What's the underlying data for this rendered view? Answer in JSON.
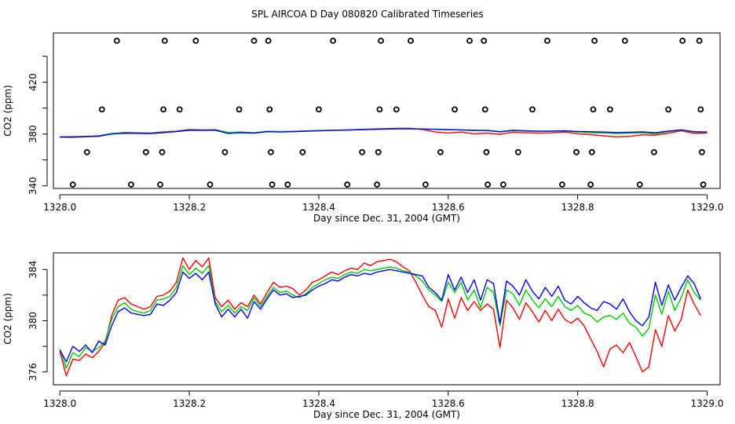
{
  "page_title": "SPL AIRCOA D  Day 080820  Calibrated Timeseries",
  "colors": {
    "red": "#ff0000",
    "green": "#00cc00",
    "blue": "#0000ff",
    "axis": "#000000"
  },
  "chart_data": [
    {
      "type": "line",
      "id": "top",
      "xlabel": "Day since Dec. 31, 2004 (GMT)",
      "ylabel": "CO2 (ppm)",
      "xlim": [
        1327.99,
        1329.02
      ],
      "ylim": [
        338,
        458
      ],
      "xticks": [
        1328.0,
        1328.2,
        1328.4,
        1328.6,
        1328.8,
        1329.0
      ],
      "xtick_labels": [
        "1328.0",
        "1328.2",
        "1328.4",
        "1328.6",
        "1328.8",
        "1329.0"
      ],
      "yticks": [
        340,
        380,
        420
      ],
      "ytick_labels": [
        "340",
        "380",
        "420"
      ],
      "yticks_minor": [
        360,
        400,
        440
      ],
      "x": [
        1328.0,
        1328.02,
        1328.04,
        1328.06,
        1328.08,
        1328.1,
        1328.12,
        1328.14,
        1328.16,
        1328.18,
        1328.2,
        1328.22,
        1328.24,
        1328.26,
        1328.28,
        1328.3,
        1328.32,
        1328.34,
        1328.36,
        1328.38,
        1328.4,
        1328.42,
        1328.44,
        1328.46,
        1328.48,
        1328.5,
        1328.52,
        1328.54,
        1328.56,
        1328.58,
        1328.6,
        1328.62,
        1328.64,
        1328.66,
        1328.68,
        1328.7,
        1328.72,
        1328.74,
        1328.76,
        1328.78,
        1328.8,
        1328.82,
        1328.84,
        1328.86,
        1328.88,
        1328.9,
        1328.92,
        1328.94,
        1328.96,
        1328.98,
        1329.0
      ],
      "series": [
        {
          "name": "red",
          "color": "#ff0000",
          "values": [
            377.6,
            377.4,
            377.8,
            378.2,
            380.2,
            381.3,
            381.0,
            380.8,
            381.7,
            382.2,
            383.6,
            383.2,
            383.4,
            381.0,
            381.3,
            380.8,
            382.1,
            381.8,
            382.0,
            382.3,
            382.6,
            382.9,
            383.1,
            383.5,
            383.9,
            384.2,
            384.4,
            384.5,
            383.5,
            381.6,
            380.8,
            381.6,
            380.2,
            380.7,
            379.8,
            381.4,
            381.0,
            380.6,
            380.9,
            381.5,
            380.2,
            379.5,
            378.6,
            377.8,
            378.2,
            379.4,
            379.1,
            380.6,
            382.5,
            380.5,
            380.8
          ]
        },
        {
          "name": "green",
          "color": "#00cc00",
          "values": [
            377.8,
            377.7,
            378.0,
            378.6,
            380.4,
            381.0,
            380.7,
            380.6,
            381.4,
            382.0,
            383.3,
            383.0,
            383.3,
            381.2,
            381.6,
            381.0,
            382.1,
            381.9,
            382.1,
            382.4,
            382.7,
            382.9,
            383.1,
            383.4,
            383.6,
            383.9,
            384.1,
            384.2,
            383.9,
            383.6,
            383.3,
            383.1,
            382.6,
            382.7,
            381.6,
            382.6,
            382.3,
            381.9,
            382.1,
            382.3,
            381.5,
            381.0,
            380.8,
            380.4,
            380.6,
            380.9,
            380.1,
            381.8,
            383.0,
            381.5,
            381.6
          ]
        },
        {
          "name": "blue",
          "color": "#0000ff",
          "values": [
            377.7,
            377.9,
            378.2,
            378.4,
            380.0,
            380.6,
            380.5,
            380.4,
            381.1,
            381.9,
            382.9,
            382.8,
            383.0,
            380.5,
            381.0,
            380.7,
            381.8,
            381.6,
            381.8,
            382.2,
            382.5,
            382.8,
            383.0,
            383.3,
            383.5,
            383.8,
            384.0,
            384.1,
            383.9,
            383.7,
            383.4,
            383.2,
            382.9,
            382.8,
            381.8,
            382.9,
            382.5,
            382.2,
            382.3,
            382.5,
            382.0,
            381.8,
            381.5,
            381.2,
            381.4,
            381.7,
            381.0,
            382.3,
            383.2,
            381.8,
            381.6
          ]
        }
      ],
      "markers": [
        {
          "x": 1328.02,
          "y": 341
        },
        {
          "x": 1328.042,
          "y": 366
        },
        {
          "x": 1328.065,
          "y": 399
        },
        {
          "x": 1328.088,
          "y": 452
        },
        {
          "x": 1328.11,
          "y": 341
        },
        {
          "x": 1328.133,
          "y": 366
        },
        {
          "x": 1328.155,
          "y": 341
        },
        {
          "x": 1328.158,
          "y": 366
        },
        {
          "x": 1328.16,
          "y": 399
        },
        {
          "x": 1328.162,
          "y": 452
        },
        {
          "x": 1328.185,
          "y": 399
        },
        {
          "x": 1328.21,
          "y": 452
        },
        {
          "x": 1328.232,
          "y": 341
        },
        {
          "x": 1328.255,
          "y": 366
        },
        {
          "x": 1328.277,
          "y": 399
        },
        {
          "x": 1328.3,
          "y": 452
        },
        {
          "x": 1328.322,
          "y": 452
        },
        {
          "x": 1328.324,
          "y": 399
        },
        {
          "x": 1328.326,
          "y": 366
        },
        {
          "x": 1328.328,
          "y": 341
        },
        {
          "x": 1328.352,
          "y": 341
        },
        {
          "x": 1328.375,
          "y": 366
        },
        {
          "x": 1328.4,
          "y": 399
        },
        {
          "x": 1328.422,
          "y": 452
        },
        {
          "x": 1328.444,
          "y": 341
        },
        {
          "x": 1328.467,
          "y": 366
        },
        {
          "x": 1328.49,
          "y": 341
        },
        {
          "x": 1328.492,
          "y": 366
        },
        {
          "x": 1328.494,
          "y": 399
        },
        {
          "x": 1328.496,
          "y": 452
        },
        {
          "x": 1328.52,
          "y": 399
        },
        {
          "x": 1328.542,
          "y": 452
        },
        {
          "x": 1328.565,
          "y": 341
        },
        {
          "x": 1328.588,
          "y": 366
        },
        {
          "x": 1328.61,
          "y": 399
        },
        {
          "x": 1328.633,
          "y": 452
        },
        {
          "x": 1328.655,
          "y": 452
        },
        {
          "x": 1328.657,
          "y": 399
        },
        {
          "x": 1328.659,
          "y": 366
        },
        {
          "x": 1328.661,
          "y": 341
        },
        {
          "x": 1328.685,
          "y": 341
        },
        {
          "x": 1328.708,
          "y": 366
        },
        {
          "x": 1328.73,
          "y": 399
        },
        {
          "x": 1328.753,
          "y": 452
        },
        {
          "x": 1328.776,
          "y": 341
        },
        {
          "x": 1328.798,
          "y": 366
        },
        {
          "x": 1328.82,
          "y": 341
        },
        {
          "x": 1328.822,
          "y": 366
        },
        {
          "x": 1328.824,
          "y": 399
        },
        {
          "x": 1328.826,
          "y": 452
        },
        {
          "x": 1328.85,
          "y": 399
        },
        {
          "x": 1328.873,
          "y": 452
        },
        {
          "x": 1328.896,
          "y": 341
        },
        {
          "x": 1328.918,
          "y": 366
        },
        {
          "x": 1328.94,
          "y": 399
        },
        {
          "x": 1328.962,
          "y": 452
        },
        {
          "x": 1328.988,
          "y": 452
        },
        {
          "x": 1328.99,
          "y": 399
        },
        {
          "x": 1328.992,
          "y": 366
        },
        {
          "x": 1328.994,
          "y": 341
        }
      ]
    },
    {
      "type": "line",
      "id": "bottom",
      "xlabel": "Day since Dec. 31, 2004 (GMT)",
      "ylabel": "CO2 (ppm)",
      "xlim": [
        1327.99,
        1329.02
      ],
      "ylim": [
        375,
        385.3
      ],
      "xticks": [
        1328.0,
        1328.2,
        1328.4,
        1328.6,
        1328.8,
        1329.0
      ],
      "xtick_labels": [
        "1328.0",
        "1328.2",
        "1328.4",
        "1328.6",
        "1328.8",
        "1329.0"
      ],
      "yticks": [
        376,
        380,
        384
      ],
      "ytick_labels": [
        "376",
        "380",
        "384"
      ],
      "yticks_minor": [
        378,
        382
      ],
      "x": [
        1328.0,
        1328.01,
        1328.02,
        1328.03,
        1328.04,
        1328.05,
        1328.06,
        1328.07,
        1328.08,
        1328.09,
        1328.1,
        1328.11,
        1328.12,
        1328.13,
        1328.14,
        1328.15,
        1328.16,
        1328.17,
        1328.18,
        1328.19,
        1328.2,
        1328.21,
        1328.22,
        1328.23,
        1328.24,
        1328.25,
        1328.26,
        1328.27,
        1328.28,
        1328.29,
        1328.3,
        1328.31,
        1328.32,
        1328.33,
        1328.34,
        1328.35,
        1328.36,
        1328.37,
        1328.38,
        1328.39,
        1328.4,
        1328.41,
        1328.42,
        1328.43,
        1328.44,
        1328.45,
        1328.46,
        1328.47,
        1328.48,
        1328.49,
        1328.5,
        1328.51,
        1328.52,
        1328.53,
        1328.54,
        1328.55,
        1328.56,
        1328.57,
        1328.58,
        1328.59,
        1328.6,
        1328.61,
        1328.62,
        1328.63,
        1328.64,
        1328.65,
        1328.66,
        1328.67,
        1328.68,
        1328.69,
        1328.7,
        1328.71,
        1328.72,
        1328.73,
        1328.74,
        1328.75,
        1328.76,
        1328.77,
        1328.78,
        1328.79,
        1328.8,
        1328.81,
        1328.82,
        1328.83,
        1328.84,
        1328.85,
        1328.86,
        1328.87,
        1328.88,
        1328.89,
        1328.9,
        1328.91,
        1328.92,
        1328.93,
        1328.94,
        1328.95,
        1328.96,
        1328.97,
        1328.98,
        1328.99
      ],
      "series": [
        {
          "name": "red",
          "color": "#ff0000",
          "values": [
            377.6,
            375.7,
            377.0,
            376.9,
            377.4,
            377.1,
            377.6,
            378.3,
            380.4,
            381.6,
            381.8,
            381.3,
            381.1,
            380.9,
            381.1,
            381.9,
            382.0,
            382.3,
            383.0,
            384.9,
            384.0,
            384.7,
            384.2,
            384.9,
            381.8,
            381.1,
            381.6,
            380.9,
            381.4,
            381.1,
            382.0,
            381.3,
            382.2,
            383.0,
            382.6,
            382.7,
            382.5,
            382.0,
            382.4,
            383.0,
            383.2,
            383.5,
            383.8,
            383.6,
            383.9,
            384.1,
            384.0,
            384.5,
            384.3,
            384.6,
            384.7,
            384.8,
            384.6,
            384.2,
            383.9,
            383.0,
            382.0,
            381.1,
            380.8,
            379.5,
            381.7,
            380.2,
            381.8,
            380.8,
            381.5,
            380.8,
            381.3,
            380.9,
            377.9,
            381.6,
            381.0,
            380.1,
            381.4,
            380.7,
            379.9,
            380.8,
            380.0,
            380.9,
            380.1,
            379.8,
            380.2,
            379.6,
            378.6,
            377.6,
            376.4,
            377.8,
            378.1,
            377.5,
            378.3,
            377.2,
            376.0,
            376.4,
            379.3,
            378.0,
            380.4,
            379.2,
            380.1,
            382.4,
            381.3,
            380.4
          ]
        },
        {
          "name": "green",
          "color": "#00cc00",
          "values": [
            377.8,
            376.3,
            377.5,
            377.2,
            377.9,
            377.6,
            377.9,
            378.4,
            380.1,
            381.1,
            381.4,
            380.9,
            380.7,
            380.6,
            380.8,
            381.6,
            381.7,
            381.9,
            382.6,
            384.3,
            383.6,
            384.1,
            383.7,
            384.3,
            381.5,
            380.7,
            381.2,
            380.6,
            381.1,
            380.8,
            381.8,
            381.1,
            381.9,
            382.6,
            382.2,
            382.3,
            382.0,
            381.8,
            382.1,
            382.6,
            382.9,
            383.2,
            383.4,
            383.3,
            383.6,
            383.8,
            383.7,
            384.0,
            383.9,
            384.0,
            384.1,
            384.2,
            384.1,
            383.9,
            383.8,
            383.5,
            383.1,
            382.4,
            382.0,
            381.5,
            383.0,
            382.2,
            383.0,
            381.6,
            382.4,
            381.0,
            382.6,
            382.2,
            379.6,
            382.4,
            382.1,
            381.2,
            382.4,
            381.6,
            381.0,
            381.7,
            381.1,
            381.9,
            381.1,
            380.8,
            381.2,
            380.6,
            380.4,
            379.9,
            380.3,
            380.4,
            380.1,
            380.6,
            379.8,
            379.5,
            378.8,
            379.4,
            382.0,
            380.5,
            382.3,
            380.8,
            381.8,
            383.2,
            382.2,
            381.6
          ]
        },
        {
          "name": "blue",
          "color": "#0000ff",
          "values": [
            377.7,
            376.8,
            378.0,
            377.6,
            378.1,
            377.5,
            378.4,
            378.1,
            379.6,
            380.7,
            381.0,
            380.6,
            380.5,
            380.4,
            380.5,
            381.3,
            381.2,
            381.6,
            382.2,
            383.8,
            383.3,
            383.7,
            383.2,
            383.8,
            381.3,
            380.3,
            380.9,
            380.3,
            380.9,
            380.2,
            381.5,
            380.9,
            381.7,
            382.4,
            382.0,
            382.1,
            381.8,
            381.9,
            382.0,
            382.4,
            382.7,
            382.9,
            383.2,
            383.1,
            383.4,
            383.6,
            383.5,
            383.7,
            383.6,
            383.8,
            383.9,
            384.0,
            383.9,
            383.8,
            383.7,
            383.6,
            383.5,
            382.6,
            382.2,
            381.6,
            383.6,
            382.4,
            383.4,
            382.2,
            383.2,
            381.6,
            383.2,
            382.9,
            379.8,
            383.1,
            382.7,
            382.0,
            383.2,
            382.3,
            381.7,
            382.6,
            381.9,
            382.7,
            381.6,
            381.3,
            381.9,
            381.4,
            381.0,
            380.8,
            381.5,
            381.3,
            380.9,
            381.7,
            380.7,
            380.0,
            379.6,
            380.3,
            383.0,
            381.2,
            382.8,
            381.6,
            382.6,
            383.5,
            382.9,
            381.7
          ]
        }
      ]
    }
  ]
}
